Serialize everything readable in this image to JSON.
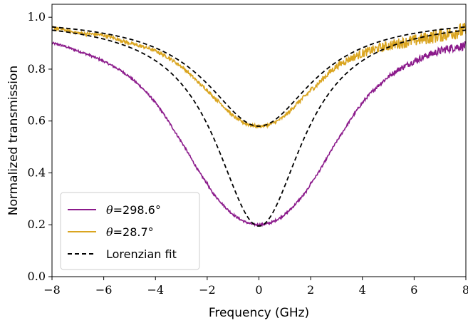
{
  "chart_data": {
    "type": "line",
    "xlabel": "Frequency (GHz)",
    "ylabel": "Normalized transmission",
    "xlim": [
      -8,
      8
    ],
    "ylim": [
      0.0,
      1.05
    ],
    "x_ticks": [
      -8,
      -6,
      -4,
      -2,
      0,
      2,
      4,
      6,
      8
    ],
    "x_tick_labels": [
      "−8",
      "−6",
      "−4",
      "−2",
      "0",
      "2",
      "4",
      "6",
      "8"
    ],
    "y_ticks": [
      0.0,
      0.2,
      0.4,
      0.6,
      0.8,
      1.0
    ],
    "y_tick_labels": [
      "0.0",
      "0.2",
      "0.4",
      "0.6",
      "0.8",
      "1.0"
    ],
    "grid": false,
    "legend_position": "lower-left",
    "series": [
      {
        "name": "298.6°",
        "legend_prefix": "θ=",
        "color": "#8b1a8b",
        "style": "solid",
        "x": [
          -8,
          -7,
          -6,
          -5,
          -4,
          -3,
          -2,
          -1.5,
          -1,
          -0.5,
          0,
          0.5,
          1,
          1.5,
          2,
          3,
          4,
          5,
          6,
          7,
          8
        ],
        "y": [
          0.9,
          0.87,
          0.83,
          0.77,
          0.67,
          0.52,
          0.36,
          0.29,
          0.24,
          0.21,
          0.2,
          0.21,
          0.24,
          0.29,
          0.36,
          0.52,
          0.67,
          0.77,
          0.83,
          0.87,
          0.89
        ]
      },
      {
        "name": "28.7°",
        "legend_prefix": "θ=",
        "color": "#daa520",
        "style": "solid",
        "x": [
          -8,
          -7,
          -6,
          -5,
          -4,
          -3,
          -2,
          -1.5,
          -1,
          -0.5,
          0,
          0.5,
          1,
          1.5,
          2,
          3,
          4,
          5,
          6,
          7,
          8
        ],
        "y": [
          0.96,
          0.94,
          0.93,
          0.9,
          0.87,
          0.81,
          0.72,
          0.67,
          0.62,
          0.59,
          0.58,
          0.59,
          0.62,
          0.67,
          0.72,
          0.81,
          0.86,
          0.89,
          0.91,
          0.93,
          0.95
        ]
      },
      {
        "name": "Lorenzian fit",
        "color": "#000000",
        "style": "dashed",
        "fits": [
          {
            "center": 0,
            "baseline": 1.0,
            "depth": 0.805,
            "hwhm": 2.05
          },
          {
            "center": 0,
            "baseline": 1.0,
            "depth": 0.42,
            "hwhm": 2.5
          }
        ]
      }
    ]
  }
}
